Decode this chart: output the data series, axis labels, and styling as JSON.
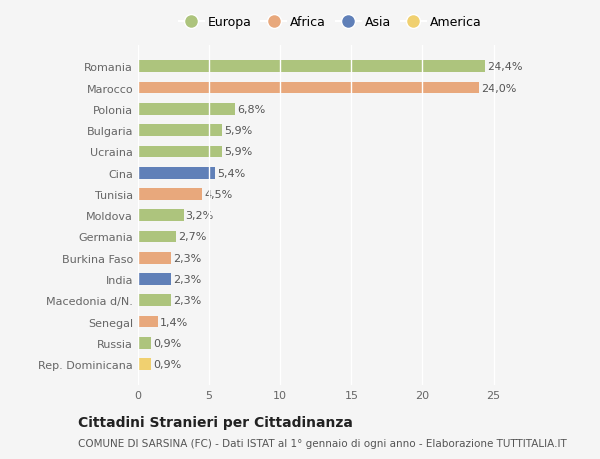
{
  "categories": [
    "Rep. Dominicana",
    "Russia",
    "Senegal",
    "Macedonia d/N.",
    "India",
    "Burkina Faso",
    "Germania",
    "Moldova",
    "Tunisia",
    "Cina",
    "Ucraina",
    "Bulgaria",
    "Polonia",
    "Marocco",
    "Romania"
  ],
  "values": [
    0.9,
    0.9,
    1.4,
    2.3,
    2.3,
    2.3,
    2.7,
    3.2,
    4.5,
    5.4,
    5.9,
    5.9,
    6.8,
    24.0,
    24.4
  ],
  "labels": [
    "0,9%",
    "0,9%",
    "1,4%",
    "2,3%",
    "2,3%",
    "2,3%",
    "2,7%",
    "3,2%",
    "4,5%",
    "5,4%",
    "5,9%",
    "5,9%",
    "6,8%",
    "24,0%",
    "24,4%"
  ],
  "continents": [
    "America",
    "Europa",
    "Africa",
    "Europa",
    "Asia",
    "Africa",
    "Europa",
    "Europa",
    "Africa",
    "Asia",
    "Europa",
    "Europa",
    "Europa",
    "Africa",
    "Europa"
  ],
  "colors": {
    "Europa": "#adc47d",
    "Africa": "#e8a87c",
    "Asia": "#6080b8",
    "America": "#f0d070"
  },
  "legend_order": [
    "Europa",
    "Africa",
    "Asia",
    "America"
  ],
  "title": "Cittadini Stranieri per Cittadinanza",
  "subtitle": "COMUNE DI SARSINA (FC) - Dati ISTAT al 1° gennaio di ogni anno - Elaborazione TUTTITALIA.IT",
  "xlim": [
    0,
    27
  ],
  "xticks": [
    0,
    5,
    10,
    15,
    20,
    25
  ],
  "background_color": "#f5f5f5",
  "bar_height": 0.55,
  "grid_color": "#ffffff",
  "title_fontsize": 10,
  "subtitle_fontsize": 7.5,
  "label_fontsize": 8,
  "tick_fontsize": 8,
  "legend_fontsize": 9
}
